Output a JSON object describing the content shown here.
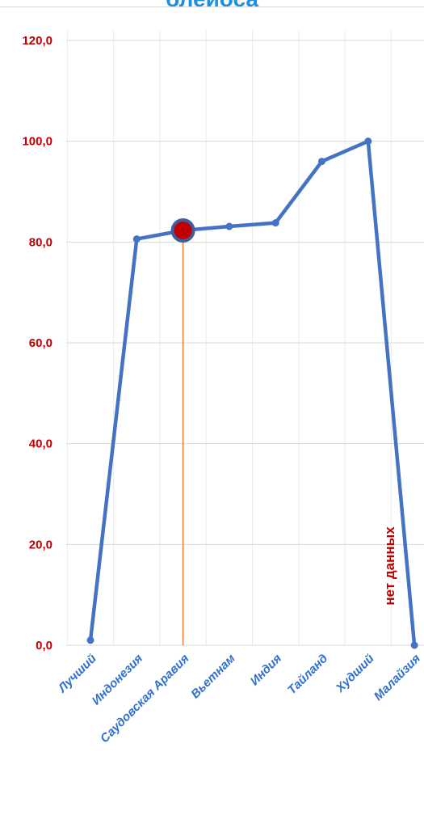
{
  "header": {
    "title": "блеиоса"
  },
  "chart_data": {
    "type": "line",
    "title": "блеиоса",
    "categories": [
      "Лучший",
      "Индонезия",
      "Саудовская Аравия",
      "Вьетнам",
      "Индия",
      "Тайланд",
      "Худший",
      "Малайзия"
    ],
    "y_tick_labels": [
      "0,0",
      "20,0",
      "40,0",
      "60,0",
      "80,0",
      "100,0",
      "120,0"
    ],
    "ylim": [
      0,
      120
    ],
    "grid": true,
    "series": [
      {
        "values": [
          1.0,
          80.6,
          82.3,
          83.1,
          83.8,
          96.0,
          100.0,
          0.0
        ]
      }
    ],
    "highlight": {
      "category": "Саудовская Аравия",
      "value": 82.3
    },
    "annotation": "нет данных",
    "colors": {
      "line": "#4472c4",
      "highlight": "#c00000",
      "drop_line": "#ed7d31",
      "y_ticks": "#c00000",
      "x_ticks": "#2f6fd0",
      "title": "#1f8fe0",
      "annotation": "#c00000"
    }
  }
}
